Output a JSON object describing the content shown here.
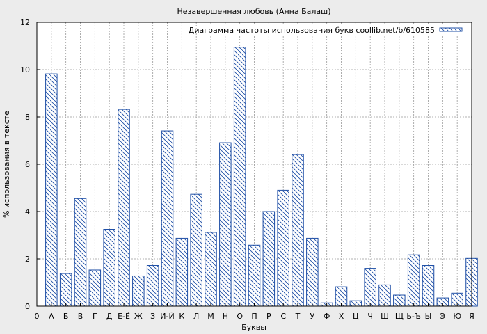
{
  "chart_data": {
    "type": "bar",
    "title": "Незавершенная любовь (Анна Балаш)",
    "xlabel": "Буквы",
    "ylabel": "% использования в тексте",
    "legend": "Диаграмма частоты использования букв coollib.net/b/610585",
    "legend_position": "top-right",
    "grid": true,
    "ylim": [
      0,
      12
    ],
    "yticks": [
      "0",
      "2",
      "4",
      "6",
      "8",
      "10",
      "12"
    ],
    "x_start_label": "0",
    "categories": [
      "А",
      "Б",
      "В",
      "Г",
      "Д",
      "Е-Ё",
      "Ж",
      "З",
      "И-Й",
      "К",
      "Л",
      "М",
      "Н",
      "О",
      "П",
      "Р",
      "С",
      "Т",
      "У",
      "Ф",
      "Х",
      "Ц",
      "Ч",
      "Ш",
      "Щ",
      "Ь-Ъ",
      "Ы",
      "Э",
      "Ю",
      "Я"
    ],
    "values": [
      9.82,
      1.38,
      4.55,
      1.53,
      3.25,
      8.32,
      1.28,
      1.72,
      7.41,
      2.87,
      4.73,
      3.12,
      6.91,
      10.95,
      2.58,
      4.0,
      4.9,
      6.41,
      2.87,
      0.14,
      0.82,
      0.23,
      1.6,
      0.9,
      0.47,
      2.17,
      1.72,
      0.35,
      0.55,
      2.02
    ],
    "colors": {
      "bar_edge": "#1f4fa6",
      "hatch": "#1f4fa6",
      "grid": "#999999",
      "background": "#ececec"
    }
  }
}
